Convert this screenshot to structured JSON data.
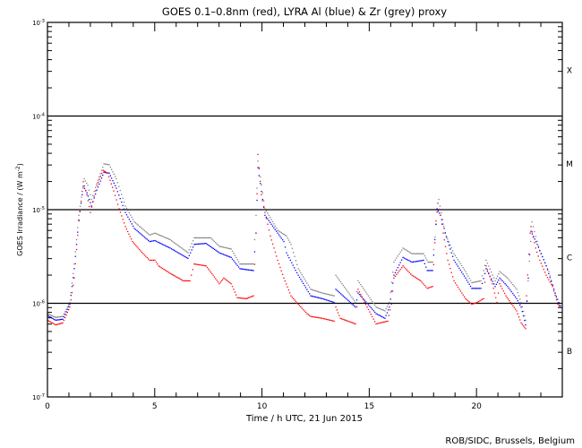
{
  "chart_data": {
    "type": "scatter",
    "title": "GOES 0.1–0.8nm (red), LYRA Al (blue) & Zr (grey) proxy",
    "xlabel": "Time / h UTC, 21 Jun 2015",
    "ylabel": "GOES Irradiance / (W m",
    "ylabel_sup": "-2",
    "ylabel_end": ")",
    "xlim": [
      0,
      24
    ],
    "ylim_log10": [
      -7,
      -3
    ],
    "yscale": "log",
    "x_ticks": [
      0,
      5,
      10,
      15,
      20
    ],
    "x_tick_labels": [
      "0",
      "5",
      "10",
      "15",
      "20"
    ],
    "y_ticks": [
      {
        "base": "10",
        "exp": "-3",
        "log10": -3
      },
      {
        "base": "10",
        "exp": "-4",
        "log10": -4
      },
      {
        "base": "10",
        "exp": "-5",
        "log10": -5
      },
      {
        "base": "10",
        "exp": "-6",
        "log10": -6
      },
      {
        "base": "10",
        "exp": "-7",
        "log10": -7
      }
    ],
    "reference_lines_log10": [
      -4,
      -5,
      -6
    ],
    "flare_classes": [
      {
        "label": "X",
        "log10": -3.5
      },
      {
        "label": "M",
        "log10": -4.5
      },
      {
        "label": "C",
        "log10": -5.5
      },
      {
        "label": "B",
        "log10": -6.5
      }
    ],
    "series_format": "[hour, log10 irradiance W m^-2]",
    "series": [
      {
        "name": "LYRA Zr proxy",
        "color": "#808080",
        "points": [
          [
            0,
            -6.11
          ],
          [
            0.38,
            -6.15
          ],
          [
            0.71,
            -6.14
          ],
          [
            1.04,
            -5.99
          ],
          [
            1.25,
            -5.58
          ],
          [
            1.46,
            -5.06
          ],
          [
            1.71,
            -4.67
          ],
          [
            1.88,
            -4.74
          ],
          [
            2.05,
            -4.89
          ],
          [
            2.3,
            -4.72
          ],
          [
            2.63,
            -4.51
          ],
          [
            2.88,
            -4.52
          ],
          [
            3.21,
            -4.67
          ],
          [
            3.63,
            -4.96
          ],
          [
            4.05,
            -5.13
          ],
          [
            4.76,
            -5.27
          ],
          [
            5.01,
            -5.25
          ],
          [
            5.72,
            -5.32
          ],
          [
            6.55,
            -5.46
          ],
          [
            6.84,
            -5.3
          ],
          [
            7.6,
            -5.3
          ],
          [
            8.01,
            -5.39
          ],
          [
            8.56,
            -5.42
          ],
          [
            8.97,
            -5.58
          ],
          [
            9.6,
            -5.58
          ],
          [
            9.72,
            -5.06
          ],
          [
            9.81,
            -4.48
          ],
          [
            10.14,
            -4.99
          ],
          [
            10.73,
            -5.22
          ],
          [
            11.14,
            -5.28
          ],
          [
            11.35,
            -5.37
          ],
          [
            11.69,
            -5.63
          ],
          [
            12.27,
            -5.85
          ],
          [
            12.81,
            -5.89
          ],
          [
            13.36,
            -5.92
          ],
          [
            13.44,
            -5.7
          ],
          [
            14.36,
            -5.99
          ],
          [
            14.48,
            -5.76
          ],
          [
            15.32,
            -6.04
          ],
          [
            15.73,
            -6.08
          ],
          [
            15.94,
            -5.99
          ],
          [
            16.15,
            -5.56
          ],
          [
            16.57,
            -5.41
          ],
          [
            16.99,
            -5.47
          ],
          [
            17.53,
            -5.47
          ],
          [
            17.74,
            -5.56
          ],
          [
            17.95,
            -5.56
          ],
          [
            18.24,
            -4.89
          ],
          [
            18.53,
            -5.25
          ],
          [
            18.95,
            -5.47
          ],
          [
            19.49,
            -5.66
          ],
          [
            19.78,
            -5.78
          ],
          [
            20.2,
            -5.76
          ],
          [
            20.45,
            -5.54
          ],
          [
            20.87,
            -5.76
          ],
          [
            21.08,
            -5.66
          ],
          [
            21.45,
            -5.73
          ],
          [
            21.87,
            -5.85
          ],
          [
            22.08,
            -5.99
          ],
          [
            22.29,
            -6.18
          ],
          [
            22.58,
            -5.13
          ],
          [
            22.95,
            -5.44
          ],
          [
            23.37,
            -5.66
          ],
          [
            23.79,
            -5.99
          ],
          [
            23.96,
            -6.04
          ]
        ]
      },
      {
        "name": "LYRA Al proxy",
        "color": "#0000ff",
        "points": [
          [
            0,
            -6.13
          ],
          [
            0.38,
            -6.18
          ],
          [
            0.71,
            -6.17
          ],
          [
            1.04,
            -6.01
          ],
          [
            1.25,
            -5.63
          ],
          [
            1.46,
            -5.11
          ],
          [
            1.67,
            -4.75
          ],
          [
            1.84,
            -4.82
          ],
          [
            2.05,
            -4.96
          ],
          [
            2.3,
            -4.79
          ],
          [
            2.63,
            -4.6
          ],
          [
            2.88,
            -4.61
          ],
          [
            3.21,
            -4.77
          ],
          [
            3.63,
            -5.03
          ],
          [
            4.05,
            -5.2
          ],
          [
            4.76,
            -5.34
          ],
          [
            5.01,
            -5.33
          ],
          [
            5.72,
            -5.41
          ],
          [
            6.55,
            -5.52
          ],
          [
            6.84,
            -5.37
          ],
          [
            7.39,
            -5.36
          ],
          [
            8.01,
            -5.46
          ],
          [
            8.56,
            -5.51
          ],
          [
            8.97,
            -5.63
          ],
          [
            9.6,
            -5.65
          ],
          [
            9.72,
            -5.25
          ],
          [
            9.81,
            -4.55
          ],
          [
            10.14,
            -5.06
          ],
          [
            10.73,
            -5.25
          ],
          [
            11.02,
            -5.34
          ],
          [
            11.14,
            -5.46
          ],
          [
            11.69,
            -5.7
          ],
          [
            12.27,
            -5.92
          ],
          [
            12.81,
            -5.95
          ],
          [
            13.36,
            -5.99
          ],
          [
            13.44,
            -5.85
          ],
          [
            14.36,
            -6.04
          ],
          [
            14.48,
            -5.89
          ],
          [
            15.32,
            -6.11
          ],
          [
            15.73,
            -6.16
          ],
          [
            15.94,
            -6.04
          ],
          [
            16.15,
            -5.7
          ],
          [
            16.57,
            -5.51
          ],
          [
            16.99,
            -5.56
          ],
          [
            17.53,
            -5.54
          ],
          [
            17.7,
            -5.65
          ],
          [
            17.95,
            -5.65
          ],
          [
            18.16,
            -4.99
          ],
          [
            18.32,
            -5.06
          ],
          [
            18.66,
            -5.34
          ],
          [
            18.95,
            -5.54
          ],
          [
            19.49,
            -5.73
          ],
          [
            19.78,
            -5.84
          ],
          [
            20.2,
            -5.84
          ],
          [
            20.45,
            -5.63
          ],
          [
            20.87,
            -5.82
          ],
          [
            21.08,
            -5.73
          ],
          [
            21.45,
            -5.82
          ],
          [
            21.87,
            -5.95
          ],
          [
            22.08,
            -6.04
          ],
          [
            22.29,
            -6.23
          ],
          [
            22.54,
            -5.23
          ],
          [
            22.83,
            -5.37
          ],
          [
            23.25,
            -5.6
          ],
          [
            23.66,
            -5.89
          ],
          [
            23.96,
            -6.06
          ]
        ]
      },
      {
        "name": "GOES 0.1-0.8nm",
        "color": "#ff0000",
        "points": [
          [
            0,
            -6.18
          ],
          [
            0.38,
            -6.23
          ],
          [
            0.71,
            -6.21
          ],
          [
            1.04,
            -6.04
          ],
          [
            1.25,
            -5.73
          ],
          [
            1.46,
            -5.12
          ],
          [
            1.67,
            -4.7
          ],
          [
            1.84,
            -4.84
          ],
          [
            2.0,
            -5.03
          ],
          [
            2.3,
            -4.74
          ],
          [
            2.59,
            -4.58
          ],
          [
            2.8,
            -4.61
          ],
          [
            3.09,
            -4.8
          ],
          [
            3.34,
            -4.99
          ],
          [
            3.63,
            -5.18
          ],
          [
            3.96,
            -5.34
          ],
          [
            4.34,
            -5.44
          ],
          [
            4.76,
            -5.54
          ],
          [
            5.01,
            -5.54
          ],
          [
            5.18,
            -5.6
          ],
          [
            5.72,
            -5.68
          ],
          [
            6.34,
            -5.76
          ],
          [
            6.64,
            -5.76
          ],
          [
            6.84,
            -5.58
          ],
          [
            7.39,
            -5.6
          ],
          [
            7.72,
            -5.7
          ],
          [
            8.01,
            -5.79
          ],
          [
            8.22,
            -5.73
          ],
          [
            8.56,
            -5.79
          ],
          [
            8.85,
            -5.94
          ],
          [
            9.27,
            -5.95
          ],
          [
            9.6,
            -5.92
          ],
          [
            9.72,
            -5.25
          ],
          [
            9.81,
            -4.41
          ],
          [
            9.97,
            -4.84
          ],
          [
            10.14,
            -5.03
          ],
          [
            10.39,
            -5.28
          ],
          [
            10.73,
            -5.54
          ],
          [
            11.02,
            -5.73
          ],
          [
            11.35,
            -5.92
          ],
          [
            11.69,
            -6.01
          ],
          [
            12.1,
            -6.11
          ],
          [
            12.27,
            -6.14
          ],
          [
            12.81,
            -6.16
          ],
          [
            13.36,
            -6.19
          ],
          [
            13.44,
            -6.04
          ],
          [
            13.65,
            -6.16
          ],
          [
            14.36,
            -6.22
          ],
          [
            14.48,
            -5.85
          ],
          [
            14.9,
            -6.04
          ],
          [
            15.32,
            -6.22
          ],
          [
            15.86,
            -6.19
          ],
          [
            16.03,
            -6.01
          ],
          [
            16.15,
            -5.73
          ],
          [
            16.57,
            -5.6
          ],
          [
            16.99,
            -5.7
          ],
          [
            17.4,
            -5.76
          ],
          [
            17.7,
            -5.84
          ],
          [
            17.95,
            -5.82
          ],
          [
            18.11,
            -5.12
          ],
          [
            18.2,
            -4.93
          ],
          [
            18.32,
            -5.06
          ],
          [
            18.45,
            -5.25
          ],
          [
            18.66,
            -5.54
          ],
          [
            18.95,
            -5.76
          ],
          [
            19.2,
            -5.85
          ],
          [
            19.49,
            -5.95
          ],
          [
            19.78,
            -6.01
          ],
          [
            20.03,
            -5.99
          ],
          [
            20.33,
            -5.95
          ],
          [
            20.45,
            -5.6
          ],
          [
            20.74,
            -5.79
          ],
          [
            20.95,
            -5.99
          ],
          [
            21.08,
            -5.79
          ],
          [
            21.37,
            -5.92
          ],
          [
            21.58,
            -5.99
          ],
          [
            21.87,
            -6.08
          ],
          [
            22.08,
            -6.21
          ],
          [
            22.29,
            -6.27
          ],
          [
            22.33,
            -5.92
          ],
          [
            22.5,
            -5.25
          ],
          [
            22.54,
            -5.18
          ],
          [
            22.75,
            -5.41
          ],
          [
            22.95,
            -5.54
          ],
          [
            23.25,
            -5.7
          ],
          [
            23.54,
            -5.82
          ],
          [
            23.79,
            -6.01
          ],
          [
            23.96,
            -6.06
          ]
        ]
      }
    ],
    "grid": false,
    "legend": "none (colors named in title)"
  },
  "footer": {
    "credit": "ROB/SIDC, Brussels, Belgium"
  }
}
